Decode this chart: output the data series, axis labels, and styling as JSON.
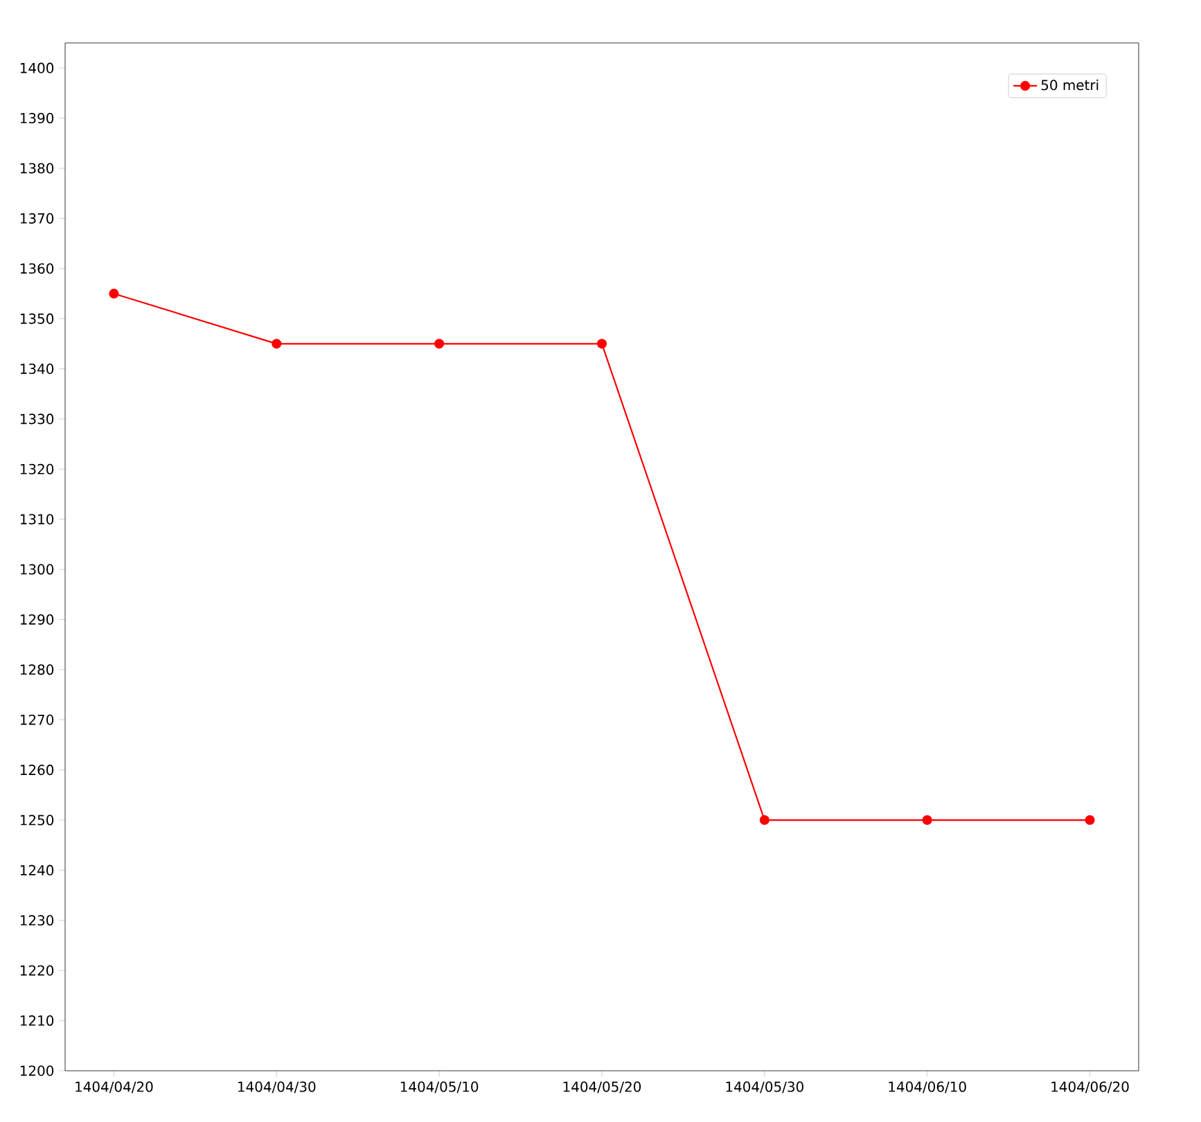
{
  "chart_data": {
    "type": "line",
    "categories": [
      "1404/04/20",
      "1404/04/30",
      "1404/05/10",
      "1404/05/20",
      "1404/05/30",
      "1404/06/10",
      "1404/06/20"
    ],
    "series": [
      {
        "name": "50 metri",
        "color": "#ff0000",
        "values": [
          1355,
          1345,
          1345,
          1345,
          1250,
          1250,
          1250
        ]
      }
    ],
    "ylim": [
      1200,
      1405
    ],
    "yticks": [
      1200,
      1210,
      1220,
      1230,
      1240,
      1250,
      1260,
      1270,
      1280,
      1290,
      1300,
      1310,
      1320,
      1330,
      1340,
      1350,
      1360,
      1370,
      1380,
      1390,
      1400
    ],
    "legend": "top right",
    "marker": "circle",
    "line_style": "solid",
    "grid": false
  }
}
